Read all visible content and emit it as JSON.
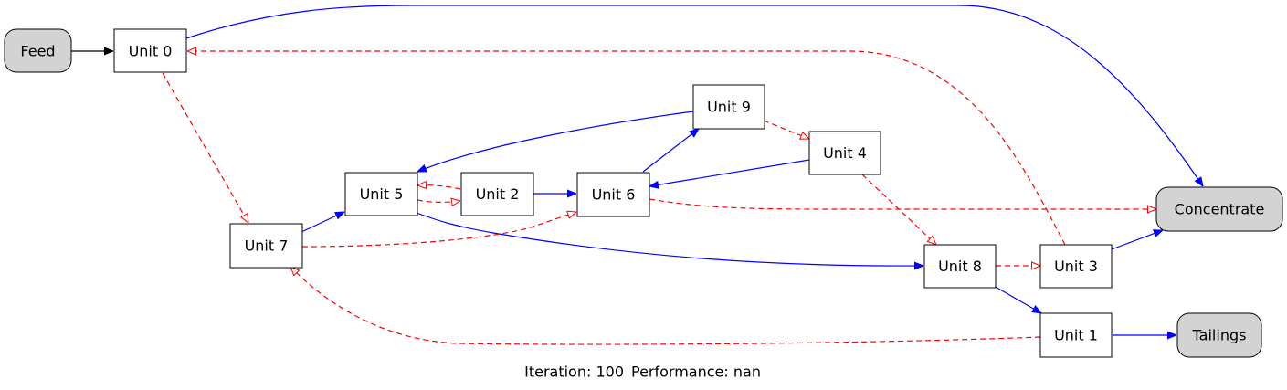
{
  "diagram": {
    "colors": {
      "background": "#ffffff",
      "terminal_fill": "#d3d3d3",
      "unit_fill": "#ffffff",
      "feed_edge": "#000000",
      "concentrate_edge": "#0000ff",
      "tailings_edge": "#ff0000"
    },
    "nodes": {
      "feed": {
        "label": "Feed",
        "kind": "terminal"
      },
      "unit0": {
        "label": "Unit 0",
        "kind": "unit"
      },
      "unit1": {
        "label": "Unit 1",
        "kind": "unit"
      },
      "unit2": {
        "label": "Unit 2",
        "kind": "unit"
      },
      "unit3": {
        "label": "Unit 3",
        "kind": "unit"
      },
      "unit4": {
        "label": "Unit 4",
        "kind": "unit"
      },
      "unit5": {
        "label": "Unit 5",
        "kind": "unit"
      },
      "unit6": {
        "label": "Unit 6",
        "kind": "unit"
      },
      "unit7": {
        "label": "Unit 7",
        "kind": "unit"
      },
      "unit8": {
        "label": "Unit 8",
        "kind": "unit"
      },
      "unit9": {
        "label": "Unit 9",
        "kind": "unit"
      },
      "concentrate": {
        "label": "Concentrate",
        "kind": "terminal"
      },
      "tailings": {
        "label": "Tailings",
        "kind": "terminal"
      }
    },
    "edges": [
      {
        "from": "Feed",
        "to": "Unit 0",
        "stream": "feed"
      },
      {
        "from": "Unit 0",
        "to": "Concentrate",
        "stream": "concentrate"
      },
      {
        "from": "Unit 0",
        "to": "Unit 7",
        "stream": "tailings"
      },
      {
        "from": "Unit 1",
        "to": "Tailings",
        "stream": "concentrate"
      },
      {
        "from": "Unit 1",
        "to": "Unit 7",
        "stream": "tailings"
      },
      {
        "from": "Unit 2",
        "to": "Unit 6",
        "stream": "concentrate"
      },
      {
        "from": "Unit 2",
        "to": "Unit 5",
        "stream": "tailings"
      },
      {
        "from": "Unit 3",
        "to": "Concentrate",
        "stream": "concentrate"
      },
      {
        "from": "Unit 3",
        "to": "Unit 0",
        "stream": "tailings"
      },
      {
        "from": "Unit 4",
        "to": "Unit 6",
        "stream": "concentrate"
      },
      {
        "from": "Unit 4",
        "to": "Unit 8",
        "stream": "tailings"
      },
      {
        "from": "Unit 5",
        "to": "Unit 8",
        "stream": "concentrate"
      },
      {
        "from": "Unit 5",
        "to": "Unit 2",
        "stream": "tailings"
      },
      {
        "from": "Unit 6",
        "to": "Unit 9",
        "stream": "concentrate"
      },
      {
        "from": "Unit 6",
        "to": "Concentrate",
        "stream": "tailings"
      },
      {
        "from": "Unit 7",
        "to": "Unit 5",
        "stream": "concentrate"
      },
      {
        "from": "Unit 7",
        "to": "Unit 6",
        "stream": "tailings"
      },
      {
        "from": "Unit 8",
        "to": "Unit 1",
        "stream": "concentrate"
      },
      {
        "from": "Unit 8",
        "to": "Unit 3",
        "stream": "tailings"
      },
      {
        "from": "Unit 9",
        "to": "Unit 5",
        "stream": "concentrate"
      },
      {
        "from": "Unit 9",
        "to": "Unit 4",
        "stream": "tailings"
      }
    ],
    "caption": {
      "iteration_label": "Iteration: 100",
      "performance_label": "Performance: nan"
    }
  }
}
